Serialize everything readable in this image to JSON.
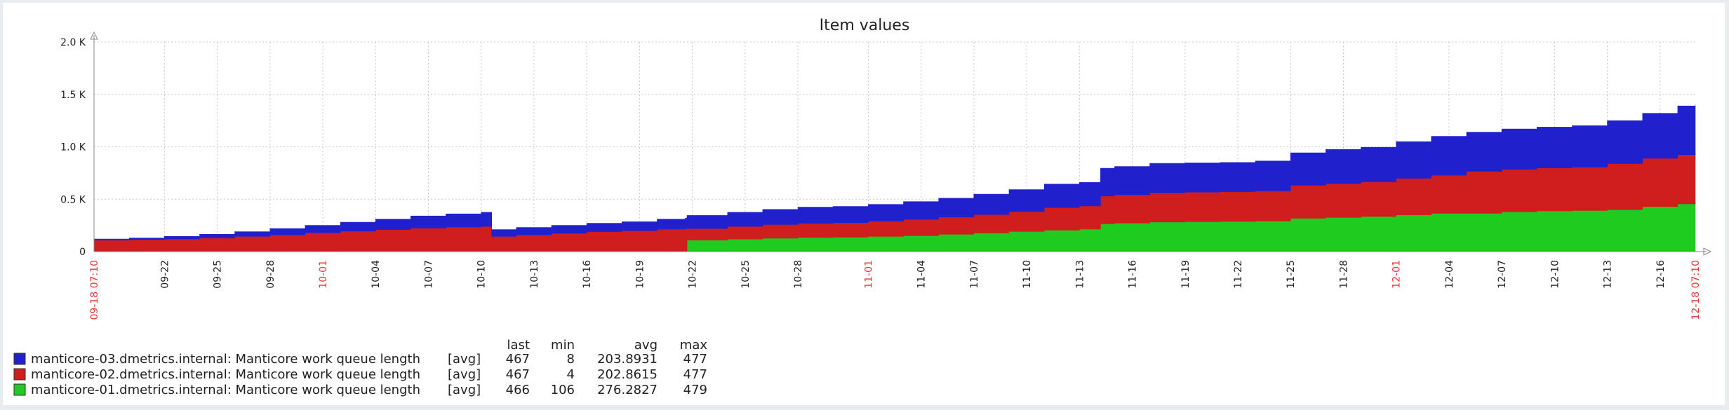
{
  "chart_data": {
    "type": "area",
    "stacked": true,
    "title": "Item values",
    "ylim": [
      0,
      2000
    ],
    "y_ticks": [
      {
        "value": 0,
        "label": "0"
      },
      {
        "value": 500,
        "label": "0.5 K"
      },
      {
        "value": 1000,
        "label": "1.0 K"
      },
      {
        "value": 1500,
        "label": "1.5 K"
      },
      {
        "value": 2000,
        "label": "2.0 K"
      }
    ],
    "x_range": [
      "09-18 07:10",
      "12-18 07:10"
    ],
    "x_ticks": [
      {
        "label": "09-18 07:10",
        "day": 0,
        "major": true
      },
      {
        "label": "09-22",
        "day": 4
      },
      {
        "label": "09-25",
        "day": 7
      },
      {
        "label": "09-28",
        "day": 10
      },
      {
        "label": "10-01",
        "day": 13,
        "major": true
      },
      {
        "label": "10-04",
        "day": 16
      },
      {
        "label": "10-07",
        "day": 19
      },
      {
        "label": "10-10",
        "day": 22
      },
      {
        "label": "10-13",
        "day": 25
      },
      {
        "label": "10-16",
        "day": 28
      },
      {
        "label": "10-19",
        "day": 31
      },
      {
        "label": "10-22",
        "day": 34
      },
      {
        "label": "10-25",
        "day": 37
      },
      {
        "label": "10-28",
        "day": 40
      },
      {
        "label": "11-01",
        "day": 44,
        "major": true
      },
      {
        "label": "11-04",
        "day": 47
      },
      {
        "label": "11-07",
        "day": 50
      },
      {
        "label": "11-10",
        "day": 53
      },
      {
        "label": "11-13",
        "day": 56
      },
      {
        "label": "11-16",
        "day": 59
      },
      {
        "label": "11-19",
        "day": 62
      },
      {
        "label": "11-22",
        "day": 65
      },
      {
        "label": "11-25",
        "day": 68
      },
      {
        "label": "11-28",
        "day": 71
      },
      {
        "label": "12-01",
        "day": 74,
        "major": true
      },
      {
        "label": "12-04",
        "day": 77
      },
      {
        "label": "12-07",
        "day": 80
      },
      {
        "label": "12-10",
        "day": 83
      },
      {
        "label": "12-13",
        "day": 86
      },
      {
        "label": "12-16",
        "day": 89
      },
      {
        "label": "12-18 07:10",
        "day": 91,
        "major": true
      }
    ],
    "x_days": [
      0,
      2,
      4,
      6,
      8,
      10,
      12,
      14,
      16,
      18,
      20,
      22,
      22.6,
      24,
      26,
      28,
      30,
      32,
      33.6,
      33.7,
      36,
      38,
      40,
      42,
      44,
      46,
      48,
      50,
      52,
      54,
      56,
      57.2,
      58,
      60,
      62,
      64,
      66,
      68,
      70,
      72,
      74,
      76,
      78,
      80,
      82,
      84,
      86,
      88,
      90,
      91
    ],
    "series": [
      {
        "name": "manticore-01.dmetrics.internal: Manticore work queue length",
        "color": "#1ecb1e",
        "values": [
          0,
          0,
          0,
          0,
          0,
          0,
          0,
          0,
          0,
          0,
          0,
          0,
          0,
          0,
          0,
          0,
          0,
          0,
          0,
          110,
          120,
          128,
          135,
          138,
          145,
          152,
          165,
          178,
          192,
          205,
          215,
          265,
          272,
          282,
          285,
          288,
          292,
          318,
          325,
          335,
          350,
          365,
          365,
          380,
          388,
          392,
          400,
          430,
          455,
          466
        ]
      },
      {
        "name": "manticore-02.dmetrics.internal: Manticore work queue length",
        "color": "#d01e1e",
        "values": [
          110,
          115,
          120,
          130,
          145,
          160,
          180,
          195,
          210,
          225,
          235,
          240,
          145,
          160,
          175,
          190,
          200,
          215,
          220,
          110,
          120,
          130,
          135,
          138,
          145,
          155,
          165,
          175,
          190,
          215,
          220,
          265,
          270,
          280,
          282,
          283,
          288,
          315,
          325,
          330,
          350,
          365,
          400,
          405,
          410,
          415,
          440,
          460,
          470,
          467
        ]
      },
      {
        "name": "manticore-03.dmetrics.internal: Manticore work queue length",
        "color": "#2020cc",
        "values": [
          10,
          15,
          25,
          35,
          45,
          60,
          70,
          85,
          100,
          115,
          125,
          135,
          65,
          70,
          75,
          80,
          85,
          95,
          100,
          125,
          135,
          145,
          155,
          155,
          160,
          170,
          180,
          195,
          210,
          225,
          225,
          265,
          270,
          280,
          280,
          280,
          285,
          310,
          325,
          330,
          350,
          370,
          375,
          385,
          390,
          395,
          410,
          430,
          465,
          467
        ]
      }
    ],
    "legend": {
      "headers": {
        "last": "last",
        "min": "min",
        "avg": "avg",
        "max": "max"
      },
      "rows": [
        {
          "name": "manticore-03.dmetrics.internal: Manticore work queue length",
          "func": "[avg]",
          "last": "467",
          "min": "8",
          "avg": "203.8931",
          "max": "477",
          "color": "#2020cc"
        },
        {
          "name": "manticore-02.dmetrics.internal: Manticore work queue length",
          "func": "[avg]",
          "last": "467",
          "min": "4",
          "avg": "202.8615",
          "max": "477",
          "color": "#d01e1e"
        },
        {
          "name": "manticore-01.dmetrics.internal: Manticore work queue length",
          "func": "[avg]",
          "last": "466",
          "min": "106",
          "avg": "276.2827",
          "max": "479",
          "color": "#1ecb1e"
        }
      ]
    },
    "colors": {
      "grid": "#c8c8c8",
      "axis": "#888888",
      "major_tick_label": "#e33333"
    }
  }
}
